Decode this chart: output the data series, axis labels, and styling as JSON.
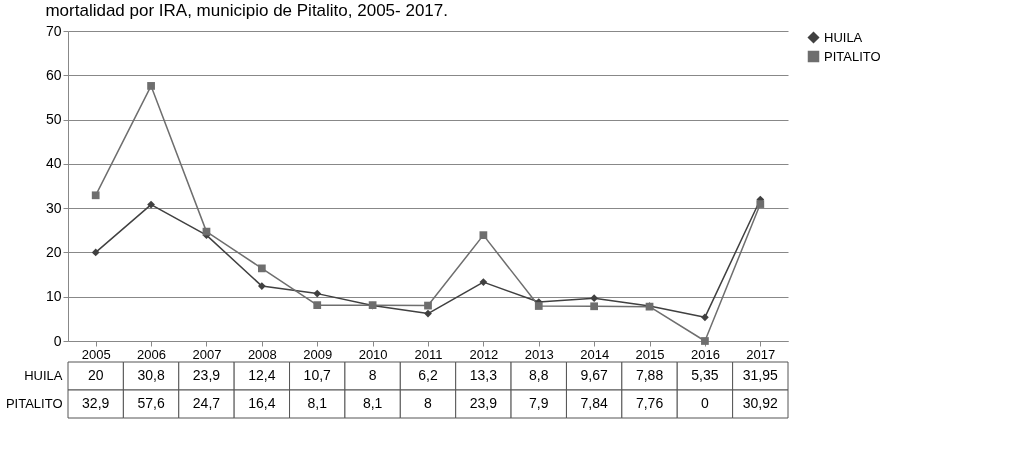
{
  "chart_data": {
    "type": "line",
    "title": "mortalidad por IRA, municipio de Pitalito, 2005- 2017.",
    "categories": [
      "2005",
      "2006",
      "2007",
      "2008",
      "2009",
      "2010",
      "2011",
      "2012",
      "2013",
      "2014",
      "2015",
      "2016",
      "2017"
    ],
    "series": [
      {
        "name": "HUILA",
        "color": "#404040",
        "marker": "diamond",
        "values": [
          20,
          30.8,
          23.9,
          12.4,
          10.7,
          8,
          6.2,
          13.3,
          8.8,
          9.67,
          7.88,
          5.35,
          31.95
        ],
        "value_labels": [
          "20",
          "30,8",
          "23,9",
          "12,4",
          "10,7",
          "8",
          "6,2",
          "13,3",
          "8,8",
          "9,67",
          "7,88",
          "5,35",
          "31,95"
        ]
      },
      {
        "name": "PITALITO",
        "color": "#6e6e6e",
        "marker": "square",
        "values": [
          32.9,
          57.6,
          24.7,
          16.4,
          8.1,
          8.1,
          8,
          23.9,
          7.9,
          7.84,
          7.76,
          0,
          30.92
        ],
        "value_labels": [
          "32,9",
          "57,6",
          "24,7",
          "16,4",
          "8,1",
          "8,1",
          "8",
          "23,9",
          "7,9",
          "7,84",
          "7,76",
          "0",
          "30,92"
        ]
      }
    ],
    "ylim": [
      0,
      70
    ],
    "yticks": [
      0,
      10,
      20,
      30,
      40,
      50,
      60,
      70
    ],
    "grid": "y",
    "legend": "right",
    "line_style": "solid"
  }
}
